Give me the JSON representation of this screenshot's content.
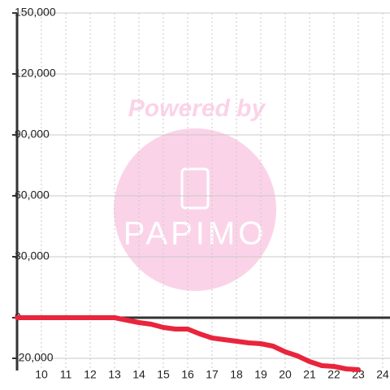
{
  "chart_data": {
    "type": "line",
    "watermark": {
      "top": "Powered by",
      "brand": "PAPIMO"
    },
    "x": [
      9,
      13,
      14,
      14.5,
      15,
      15.5,
      16,
      16.5,
      17,
      17.5,
      18,
      18.5,
      19,
      19.5,
      20,
      20.5,
      21,
      21.5,
      22,
      22.5,
      23
    ],
    "series": [
      {
        "name": "balance",
        "color": "#e8253c",
        "values": [
          0,
          0,
          -2400,
          -3200,
          -4800,
          -5600,
          -5600,
          -8000,
          -10000,
          -10800,
          -11600,
          -12400,
          -12800,
          -14000,
          -16800,
          -18800,
          -21600,
          -23600,
          -24000,
          -25200,
          -25600
        ]
      }
    ],
    "xlim": [
      9,
      24.3
    ],
    "xticks": [
      10,
      11,
      12,
      13,
      14,
      15,
      16,
      17,
      18,
      19,
      20,
      21,
      22,
      23,
      24
    ],
    "ylim": [
      -26000,
      150000
    ],
    "yticks": [
      {
        "value": -20000,
        "label": "-20,000"
      },
      0,
      {
        "value": 30000,
        "label": "30,000"
      },
      {
        "value": 60000,
        "label": "60,000"
      },
      {
        "value": 90000,
        "label": "90,000"
      },
      {
        "value": 120000,
        "label": "120,000"
      },
      {
        "value": 150000,
        "label": "150,000"
      }
    ],
    "grid": true
  }
}
